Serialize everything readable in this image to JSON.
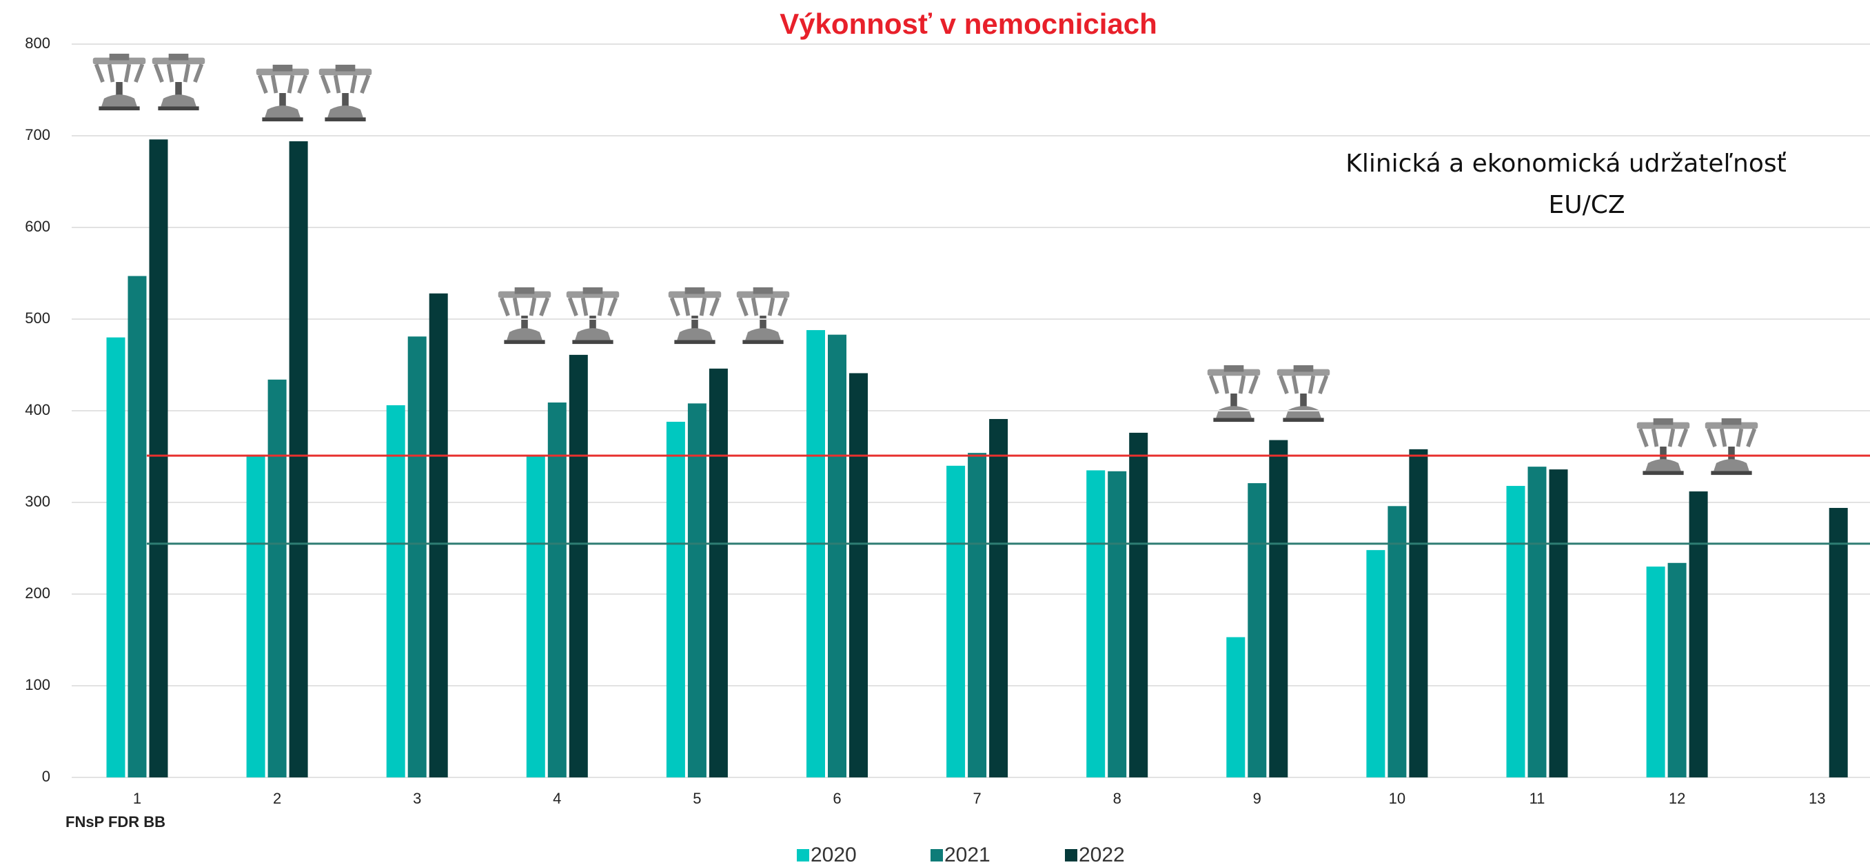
{
  "chart_data": {
    "type": "bar",
    "title": "Výkonnosť v nemocniciach",
    "categories": [
      "1",
      "2",
      "3",
      "4",
      "5",
      "6",
      "7",
      "8",
      "9",
      "10",
      "11",
      "12",
      "13"
    ],
    "series": [
      {
        "name": "2020",
        "color": "#00c8c0",
        "values": [
          480,
          352,
          406,
          350,
          388,
          488,
          340,
          335,
          153,
          248,
          318,
          230,
          null
        ]
      },
      {
        "name": "2021",
        "color": "#0e7c78",
        "values": [
          547,
          434,
          481,
          409,
          408,
          483,
          354,
          334,
          321,
          296,
          339,
          234,
          null
        ]
      },
      {
        "name": "2022",
        "color": "#053a3a",
        "values": [
          696,
          694,
          528,
          461,
          446,
          441,
          391,
          376,
          368,
          358,
          336,
          312,
          294
        ]
      }
    ],
    "reference_lines": [
      {
        "value": 351,
        "color": "#e8302e"
      },
      {
        "value": 255,
        "color": "#2e7d73"
      }
    ],
    "annotations": [
      "Klinická a ekonomická udržateľnosť",
      "EU/CZ",
      "FNsP FDR BB"
    ],
    "ylim": [
      0,
      800
    ],
    "yticks": [
      0,
      100,
      200,
      300,
      400,
      500,
      600,
      700,
      800
    ],
    "grid": true,
    "legend": "bottom"
  }
}
